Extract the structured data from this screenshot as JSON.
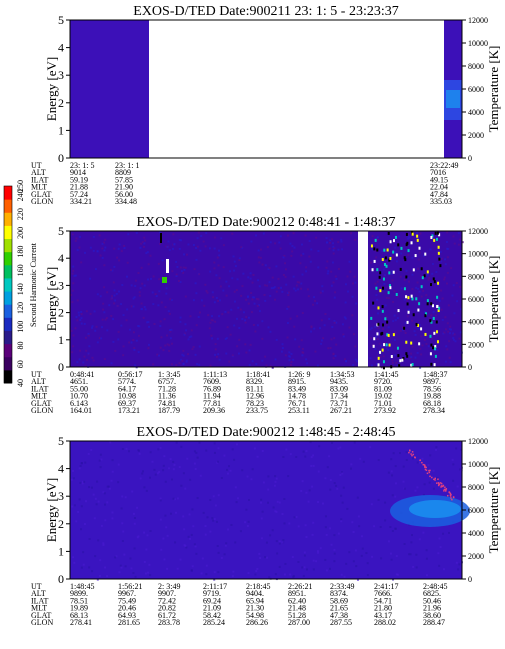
{
  "chart_data": [
    {
      "type": "heatmap",
      "title": "EXOS-D/TED   Date:900211  23: 1: 5 - 23:23:37",
      "ylabel": "Energy [eV]",
      "ylabel_right": "Temperature [K]",
      "y_ticks": [
        "0",
        "1",
        "2",
        "3",
        "4",
        "5"
      ],
      "y_right_ticks": [
        "0",
        "2000",
        "4000",
        "6000",
        "8000",
        "10000",
        "12000"
      ],
      "ylim": [
        0,
        5
      ],
      "y_right_lim": [
        0,
        12000
      ],
      "data_gap": "blank from ~23:1:30 to ~23:22:40",
      "background_level": "purple/blue",
      "row_labels": [
        "UT",
        "ALT",
        "ILAT",
        "MLT",
        "GLAT",
        "GLON"
      ],
      "columns": [
        {
          "UT": "23: 1: 5",
          "ALT": "9014",
          "ILAT": "59.19",
          "MLT": "21.88",
          "GLAT": "57.24",
          "GLON": "334.21"
        },
        {
          "UT": "23: 1: 1",
          "ALT": "8809",
          "ILAT": "57.85",
          "MLT": "21.90",
          "GLAT": "56.00",
          "GLON": "334.48"
        },
        {
          "UT": "23:22:49",
          "ALT": "7016",
          "ILAT": "49.15",
          "MLT": "22.04",
          "GLAT": "47.84",
          "GLON": "335.03"
        }
      ]
    },
    {
      "type": "heatmap",
      "title": "EXOS-D/TED   Date:900212  0:48:41 - 1:48:37",
      "ylabel": "Energy [eV]",
      "ylabel_right": "Temperature [K]",
      "y_ticks": [
        "0",
        "1",
        "2",
        "3",
        "4",
        "5"
      ],
      "y_right_ticks": [
        "0",
        "2000",
        "4000",
        "6000",
        "8000",
        "10000",
        "12000"
      ],
      "ylim": [
        0,
        5
      ],
      "y_right_lim": [
        0,
        12000
      ],
      "data_gap": "white vertical gap near 1:35",
      "row_labels": [
        "UT",
        "ALT",
        "ILAT",
        "MLT",
        "GLAT",
        "GLON"
      ],
      "columns": [
        {
          "UT": "0:48:41",
          "ALT": "4651.",
          "ILAT": "55.00",
          "MLT": "10.70",
          "GLAT": "6.143",
          "GLON": "164.01"
        },
        {
          "UT": "0:56:17",
          "ALT": "5774.",
          "ILAT": "64.17",
          "MLT": "10.98",
          "GLAT": "69.37",
          "GLON": "173.21"
        },
        {
          "UT": "1: 3:45",
          "ALT": "6757.",
          "ILAT": "71.28",
          "MLT": "11.36",
          "GLAT": "74.81",
          "GLON": "187.79"
        },
        {
          "UT": "1:11:13",
          "ALT": "7609.",
          "ILAT": "76.89",
          "MLT": "11.94",
          "GLAT": "77.81",
          "GLON": "209.36"
        },
        {
          "UT": "1:18:41",
          "ALT": "8329.",
          "ILAT": "81.11",
          "MLT": "12.96",
          "GLAT": "78.23",
          "GLON": "233.75"
        },
        {
          "UT": "1:26: 9",
          "ALT": "8915.",
          "ILAT": "83.49",
          "MLT": "14.78",
          "GLAT": "76.71",
          "GLON": "253.11"
        },
        {
          "UT": "1:34:53",
          "ALT": "9435.",
          "ILAT": "83.09",
          "MLT": "17.34",
          "GLAT": "73.71",
          "GLON": "267.21"
        },
        {
          "UT": "1:41:45",
          "ALT": "9720.",
          "ILAT": "81.09",
          "MLT": "19.02",
          "GLAT": "71.01",
          "GLON": "273.92"
        },
        {
          "UT": "1:48:37",
          "ALT": "9897.",
          "ILAT": "78.56",
          "MLT": "19.88",
          "GLAT": "68.18",
          "GLON": "278.34"
        }
      ]
    },
    {
      "type": "heatmap",
      "title": "EXOS-D/TED   Date:900212  1:48:45 - 2:48:45",
      "ylabel": "Energy [eV]",
      "ylabel_right": "Temperature [K]",
      "y_ticks": [
        "0",
        "1",
        "2",
        "3",
        "4",
        "5"
      ],
      "y_right_ticks": [
        "0",
        "2000",
        "4000",
        "6000",
        "8000",
        "10000",
        "12000"
      ],
      "ylim": [
        0,
        5
      ],
      "y_right_lim": [
        0,
        12000
      ],
      "row_labels": [
        "UT",
        "ALT",
        "ILAT",
        "MLT",
        "GLAT",
        "GLON"
      ],
      "columns": [
        {
          "UT": "1:48:45",
          "ALT": "9899.",
          "ILAT": "78.51",
          "MLT": "19.89",
          "GLAT": "68.13",
          "GLON": "278.41"
        },
        {
          "UT": "1:56:21",
          "ALT": "9967.",
          "ILAT": "75.49",
          "MLT": "20.46",
          "GLAT": "64.93",
          "GLON": "281.65"
        },
        {
          "UT": "2: 3:49",
          "ALT": "9907.",
          "ILAT": "72.42",
          "MLT": "20.82",
          "GLAT": "61.72",
          "GLON": "283.78"
        },
        {
          "UT": "2:11:17",
          "ALT": "9719.",
          "ILAT": "69.24",
          "MLT": "21.09",
          "GLAT": "58.42",
          "GLON": "285.24"
        },
        {
          "UT": "2:18:45",
          "ALT": "9404.",
          "ILAT": "65.94",
          "MLT": "21.30",
          "GLAT": "54.98",
          "GLON": "286.26"
        },
        {
          "UT": "2:26:21",
          "ALT": "8951.",
          "ILAT": "62.40",
          "MLT": "21.48",
          "GLAT": "51.28",
          "GLON": "287.00"
        },
        {
          "UT": "2:33:49",
          "ALT": "8374.",
          "ILAT": "58.69",
          "MLT": "21.65",
          "GLAT": "47.38",
          "GLON": "287.55"
        },
        {
          "UT": "2:41:17",
          "ALT": "7666.",
          "ILAT": "54.71",
          "MLT": "21.80",
          "GLAT": "43.17",
          "GLON": "288.02"
        },
        {
          "UT": "2:48:45",
          "ALT": "6825.",
          "ILAT": "50.46",
          "MLT": "21.96",
          "GLAT": "38.60",
          "GLON": "288.47"
        }
      ]
    }
  ],
  "colorbar": {
    "label": "Second Harmonic Current",
    "ticks": [
      "40",
      "60",
      "80",
      "100",
      "120",
      "140",
      "160",
      "180",
      "200",
      "220",
      "240",
      "250"
    ],
    "range": [
      40,
      250
    ],
    "colors": [
      "#000000",
      "#3a0060",
      "#5a007a",
      "#2a1a8a",
      "#1a2ac0",
      "#1a60e0",
      "#00a0e0",
      "#00c8c0",
      "#00c060",
      "#30d000",
      "#a0e000",
      "#ffff00",
      "#ffb000",
      "#ff6000",
      "#ff0000"
    ]
  }
}
